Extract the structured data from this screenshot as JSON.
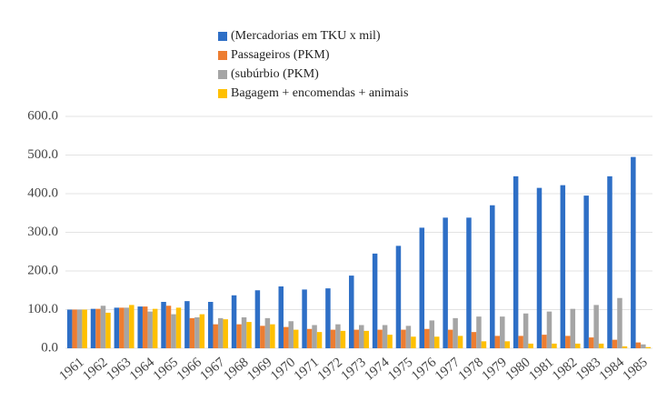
{
  "chart_data": {
    "type": "bar",
    "categories": [
      "1961",
      "1962",
      "1963",
      "1964",
      "1965",
      "1966",
      "1967",
      "1968",
      "1969",
      "1970",
      "1971",
      "1972",
      "1973",
      "1974",
      "1975",
      "1976",
      "1977",
      "1978",
      "1979",
      "1980",
      "1981",
      "1982",
      "1983",
      "1984",
      "1985"
    ],
    "series": [
      {
        "name": "(Mercadorias em TKU x mil)",
        "color": "#2e6fc6",
        "values": [
          100,
          102,
          105,
          108,
          120,
          122,
          120,
          137,
          150,
          160,
          152,
          155,
          188,
          245,
          265,
          312,
          338,
          338,
          370,
          445,
          415,
          422,
          395,
          445,
          495
        ]
      },
      {
        "name": "Passageiros (PKM)",
        "color": "#ed7d31",
        "values": [
          100,
          102,
          105,
          108,
          110,
          78,
          62,
          62,
          58,
          55,
          50,
          48,
          48,
          48,
          48,
          50,
          48,
          42,
          32,
          32,
          35,
          32,
          28,
          22,
          15
        ]
      },
      {
        "name": "(subúrbio (PKM)",
        "color": "#a5a5a5",
        "values": [
          100,
          110,
          105,
          95,
          88,
          80,
          78,
          80,
          78,
          70,
          60,
          62,
          60,
          60,
          58,
          72,
          78,
          82,
          82,
          90,
          95,
          102,
          112,
          130,
          10
        ]
      },
      {
        "name": "Bagagem + encomendas + animais",
        "color": "#ffc000",
        "values": [
          100,
          92,
          112,
          102,
          105,
          88,
          75,
          68,
          62,
          48,
          42,
          45,
          45,
          35,
          30,
          30,
          32,
          18,
          18,
          12,
          12,
          12,
          12,
          5,
          3
        ]
      }
    ],
    "ylim": [
      0,
      600
    ],
    "yticks": [
      {
        "value": 0,
        "label": "0.0"
      },
      {
        "value": 100,
        "label": "100.0"
      },
      {
        "value": 200,
        "label": "200.0"
      },
      {
        "value": 300,
        "label": "300.0"
      },
      {
        "value": 400,
        "label": "400.0"
      },
      {
        "value": 500,
        "label": "500.0"
      },
      {
        "value": 600,
        "label": "600.0"
      }
    ],
    "grid": true,
    "legend": "top"
  }
}
